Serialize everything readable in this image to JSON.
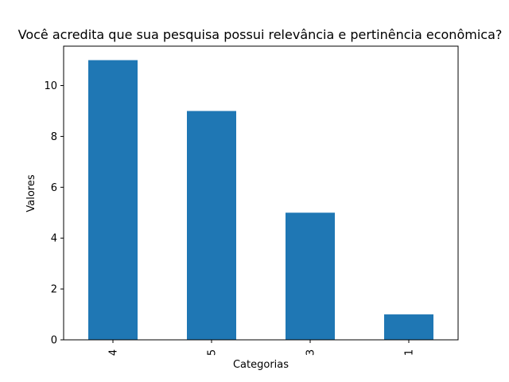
{
  "chart_data": {
    "type": "bar",
    "title": "Você acredita que sua pesquisa possui relevância e pertinência econômica?",
    "xlabel": "Categorias",
    "ylabel": "Valores",
    "categories": [
      "4",
      "5",
      "3",
      "1"
    ],
    "values": [
      11,
      9,
      5,
      1
    ],
    "ylim": [
      0,
      11.55
    ],
    "yticks": [
      0,
      2,
      4,
      6,
      8,
      10
    ],
    "bar_color": "#1f77b4",
    "grid": false,
    "legend": "none"
  }
}
